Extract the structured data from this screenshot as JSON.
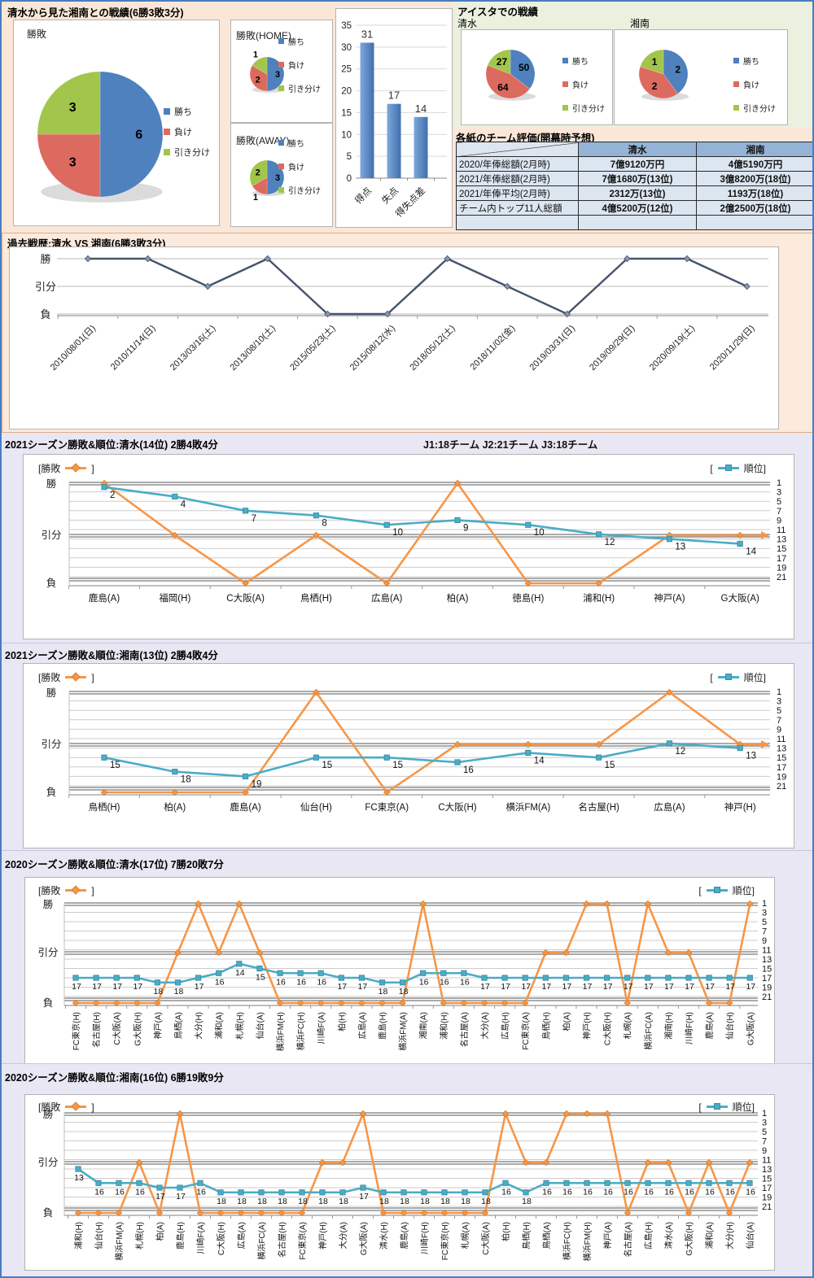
{
  "sections": {
    "head_to_head_title": "清水から見た湘南との戦績(6勝3敗3分)",
    "aista_title": "アイスタでの戦績",
    "aista_left_label": "清水",
    "aista_right_label": "湘南",
    "table_title": "各紙のチーム評価(開幕時予想)",
    "history_title": "過去戦歴:清水 VS 湘南(6勝3敗3分)",
    "season_note": "J1:18チーム  J2:21チーム  J3:18チーム",
    "legend_left_pre": "[勝敗",
    "legend_left_post": "]",
    "legend_right_pre": "[",
    "legend_right_post": "順位]"
  },
  "pie_legend_labels": [
    "勝ち",
    "負け",
    "引き分け"
  ],
  "table": {
    "columns": [
      "清水",
      "湘南"
    ],
    "rows": [
      [
        "2020/年俸総額(2月時)",
        "7億9120万円",
        "4億5190万円"
      ],
      [
        "2021/年俸総額(2月時)",
        "7億1680万(13位)",
        "3億8200万(18位)"
      ],
      [
        "2021/年俸平均(2月時)",
        "2312万(13位)",
        "1193万(18位)"
      ],
      [
        "チーム内トップ11人総額",
        "4億5200万(12位)",
        "2億2500万(18位)"
      ],
      [
        "",
        "",
        ""
      ]
    ]
  },
  "colors": {
    "pie_win": "#4e81bd",
    "pie_lose": "#dd6a5f",
    "pie_draw": "#a2c64b",
    "bar_blue": "#4e81bd",
    "history_line": "#44546a",
    "winloss_orange": "#f79646",
    "rank_teal": "#4bacc6"
  },
  "chart_data": [
    {
      "id": "overall_pie",
      "type": "pie",
      "title": "勝敗",
      "labels": [
        "勝ち",
        "負け",
        "引き分け"
      ],
      "values": [
        6,
        3,
        3
      ]
    },
    {
      "id": "home_pie",
      "type": "pie",
      "title": "勝敗(HOME)",
      "labels": [
        "勝ち",
        "負け",
        "引き分け"
      ],
      "values": [
        3,
        2,
        1
      ]
    },
    {
      "id": "away_pie",
      "type": "pie",
      "title": "勝敗(AWAY)",
      "labels": [
        "勝ち",
        "負け",
        "引き分け"
      ],
      "values": [
        3,
        1,
        2
      ]
    },
    {
      "id": "score_bar",
      "type": "bar",
      "categories": [
        "得点",
        "失点",
        "得失点差"
      ],
      "values": [
        31,
        17,
        14
      ],
      "ylim": [
        0,
        35
      ],
      "yticks": [
        0,
        5,
        10,
        15,
        20,
        25,
        30,
        35
      ]
    },
    {
      "id": "aista_shimizu_pie",
      "type": "pie",
      "title": "清水",
      "labels": [
        "勝ち",
        "負け",
        "引き分け"
      ],
      "values": [
        50,
        64,
        27
      ]
    },
    {
      "id": "aista_shonan_pie",
      "type": "pie",
      "title": "湘南",
      "labels": [
        "勝ち",
        "負け",
        "引き分け"
      ],
      "values": [
        2,
        2,
        1
      ]
    },
    {
      "id": "history",
      "type": "line",
      "title": "過去戦歴:清水 VS 湘南(6勝3敗3分)",
      "y_levels": [
        "勝",
        "引分",
        "負"
      ],
      "x": [
        "2010/08/01(日)",
        "2010/11/14(日)",
        "2013/03/16(土)",
        "2013/08/10(土)",
        "2015/05/23(土)",
        "2015/08/12(水)",
        "2018/05/12(土)",
        "2018/11/02(金)",
        "2019/03/31(日)",
        "2019/09/29(日)",
        "2020/09/19(土)",
        "2020/11/29(日)"
      ],
      "values": [
        "勝",
        "勝",
        "引分",
        "勝",
        "負",
        "負",
        "勝",
        "引分",
        "負",
        "勝",
        "勝",
        "引分"
      ]
    },
    {
      "id": "s2021_shimizu",
      "type": "line-dual",
      "title": "2021シーズン勝敗&順位:清水(14位) 2勝4敗4分",
      "left_levels": [
        "勝",
        "引分",
        "負"
      ],
      "right_ticks": [
        1,
        3,
        5,
        7,
        9,
        11,
        13,
        15,
        17,
        19,
        21
      ],
      "categories": [
        "鹿島(A)",
        "福岡(H)",
        "C大阪(A)",
        "鳥栖(H)",
        "広島(A)",
        "柏(A)",
        "徳島(H)",
        "浦和(H)",
        "神戸(A)",
        "G大阪(A)"
      ],
      "series": [
        {
          "name": "勝敗",
          "values": [
            "勝",
            "引分",
            "負",
            "引分",
            "負",
            "勝",
            "負",
            "負",
            "引分",
            "引分"
          ]
        },
        {
          "name": "順位",
          "values": [
            2,
            4,
            7,
            8,
            10,
            9,
            10,
            12,
            13,
            14
          ]
        }
      ]
    },
    {
      "id": "s2021_shonan",
      "type": "line-dual",
      "title": "2021シーズン勝敗&順位:湘南(13位) 2勝4敗4分",
      "left_levels": [
        "勝",
        "引分",
        "負"
      ],
      "right_ticks": [
        1,
        3,
        5,
        7,
        9,
        11,
        13,
        15,
        17,
        19,
        21
      ],
      "categories": [
        "鳥栖(H)",
        "柏(A)",
        "鹿島(A)",
        "仙台(H)",
        "FC東京(A)",
        "C大阪(H)",
        "横浜FM(A)",
        "名古屋(H)",
        "広島(A)",
        "神戸(H)"
      ],
      "series": [
        {
          "name": "勝敗",
          "values": [
            "負",
            "負",
            "負",
            "勝",
            "負",
            "引分",
            "引分",
            "引分",
            "勝",
            "引分"
          ]
        },
        {
          "name": "順位",
          "values": [
            15,
            18,
            19,
            15,
            15,
            16,
            14,
            15,
            12,
            13
          ]
        }
      ]
    },
    {
      "id": "s2020_shimizu",
      "type": "line-dual",
      "title": "2020シーズン勝敗&順位:清水(17位) 7勝20敗7分",
      "left_levels": [
        "勝",
        "引分",
        "負"
      ],
      "right_ticks": [
        1,
        3,
        5,
        7,
        9,
        11,
        13,
        15,
        17,
        19,
        21
      ],
      "categories": [
        "FC東京(H)",
        "名古屋(H)",
        "C大阪(A)",
        "G大阪(H)",
        "神戸(A)",
        "鳥栖(A)",
        "大分(H)",
        "浦和(A)",
        "札幌(H)",
        "仙台(A)",
        "横浜FM(H)",
        "横浜FC(H)",
        "川崎F(A)",
        "柏(H)",
        "広島(A)",
        "鹿島(H)",
        "横浜FM(A)",
        "湘南(A)",
        "浦和(H)",
        "名古屋(A)",
        "大分(A)",
        "広島(H)",
        "FC東京(A)",
        "鳥栖(H)",
        "柏(A)",
        "神戸(H)",
        "C大阪(H)",
        "札幌(A)",
        "横浜FC(A)",
        "湘南(H)",
        "川崎F(H)",
        "鹿島(A)",
        "仙台(H)",
        "G大阪(A)"
      ],
      "series": [
        {
          "name": "勝敗",
          "values": [
            "負",
            "負",
            "負",
            "負",
            "負",
            "引分",
            "勝",
            "引分",
            "勝",
            "引分",
            "負",
            "負",
            "負",
            "負",
            "負",
            "負",
            "負",
            "勝",
            "負",
            "負",
            "負",
            "負",
            "負",
            "引分",
            "引分",
            "勝",
            "勝",
            "負",
            "勝",
            "引分",
            "引分",
            "負",
            "負",
            "勝"
          ]
        },
        {
          "name": "順位",
          "values": [
            17,
            17,
            17,
            17,
            18,
            18,
            17,
            16,
            14,
            15,
            16,
            16,
            16,
            17,
            17,
            18,
            18,
            16,
            16,
            16,
            17,
            17,
            17,
            17,
            17,
            17,
            17,
            17,
            17,
            17,
            17,
            17,
            17,
            17
          ]
        }
      ]
    },
    {
      "id": "s2020_shonan",
      "type": "line-dual",
      "title": "2020シーズン勝敗&順位:湘南(16位) 6勝19敗9分",
      "left_levels": [
        "勝",
        "引分",
        "負"
      ],
      "right_ticks": [
        1,
        3,
        5,
        7,
        9,
        11,
        13,
        15,
        17,
        19,
        21
      ],
      "categories": [
        "浦和(H)",
        "仙台(H)",
        "横浜FM(A)",
        "札幌(H)",
        "柏(A)",
        "鹿島(H)",
        "川崎F(A)",
        "C大阪(H)",
        "広島(A)",
        "横浜FC(A)",
        "名古屋(H)",
        "FC東京(A)",
        "神戸(H)",
        "大分(A)",
        "G大阪(A)",
        "清水(H)",
        "鹿島(A)",
        "川崎F(H)",
        "FC東京(H)",
        "札幌(A)",
        "C大阪(A)",
        "柏(H)",
        "鳥栖(H)",
        "鳥栖(A)",
        "横浜FC(H)",
        "横浜FM(H)",
        "神戸(A)",
        "名古屋(A)",
        "広島(H)",
        "清水(A)",
        "G大阪(H)",
        "浦和(A)",
        "大分(H)",
        "仙台(A)"
      ],
      "series": [
        {
          "name": "勝敗",
          "values": [
            "負",
            "負",
            "負",
            "引分",
            "負",
            "勝",
            "負",
            "負",
            "負",
            "負",
            "負",
            "負",
            "引分",
            "引分",
            "勝",
            "負",
            "負",
            "負",
            "負",
            "負",
            "負",
            "勝",
            "引分",
            "引分",
            "勝",
            "勝",
            "勝",
            "負",
            "引分",
            "引分",
            "負",
            "引分",
            "負",
            "引分"
          ]
        },
        {
          "name": "順位",
          "values": [
            13,
            16,
            16,
            16,
            17,
            17,
            16,
            18,
            18,
            18,
            18,
            18,
            18,
            18,
            17,
            18,
            18,
            18,
            18,
            18,
            18,
            16,
            18,
            16,
            16,
            16,
            16,
            16,
            16,
            16,
            16,
            16,
            16,
            16
          ]
        }
      ]
    }
  ]
}
